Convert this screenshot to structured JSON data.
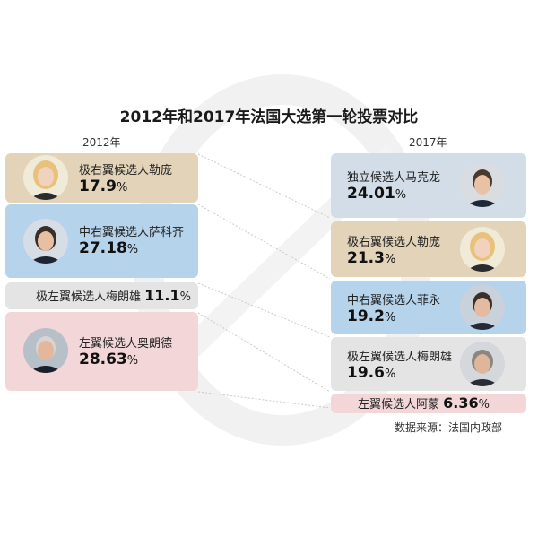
{
  "title": "2012年和2017年法国大选第一轮投票对比",
  "years": {
    "left": "2012年",
    "right": "2017年"
  },
  "source": "数据来源：法国内政部",
  "pct_symbol": "%",
  "colors": {
    "far_right": "#e3d3b8",
    "center_right": "#b6d3ec",
    "far_left": "#e4e4e4",
    "left": "#f2d6d8",
    "independent": "#d2dde8"
  },
  "chart_data": {
    "type": "table",
    "title": "2012年和2017年法国大选第一轮投票对比",
    "series": [
      {
        "name": "2012年",
        "candidates": [
          {
            "label": "极右翼候选人勒庞",
            "value": "17.9",
            "color": "#e3d3b8",
            "icon": "portrait-icon"
          },
          {
            "label": "中右翼候选人萨科齐",
            "value": "27.18",
            "color": "#b6d3ec",
            "icon": "portrait-icon"
          },
          {
            "label": "极左翼候选人梅朗雄",
            "value": "11.1",
            "color": "#e4e4e4"
          },
          {
            "label": "左翼候选人奥朗德",
            "value": "28.63",
            "color": "#f2d6d8",
            "icon": "portrait-icon"
          }
        ]
      },
      {
        "name": "2017年",
        "candidates": [
          {
            "label": "独立候选人马克龙",
            "value": "24.01",
            "color": "#d2dde8",
            "icon": "portrait-icon"
          },
          {
            "label": "极右翼候选人勒庞",
            "value": "21.3",
            "color": "#e3d3b8",
            "icon": "portrait-icon"
          },
          {
            "label": "中右翼候选人菲永",
            "value": "19.2",
            "color": "#b6d3ec",
            "icon": "portrait-icon"
          },
          {
            "label": "极左翼候选人梅朗雄",
            "value": "19.6",
            "color": "#e4e4e4",
            "icon": "portrait-icon"
          },
          {
            "label": "左翼候选人阿蒙",
            "value": "6.36",
            "color": "#f2d6d8"
          }
        ]
      }
    ]
  }
}
